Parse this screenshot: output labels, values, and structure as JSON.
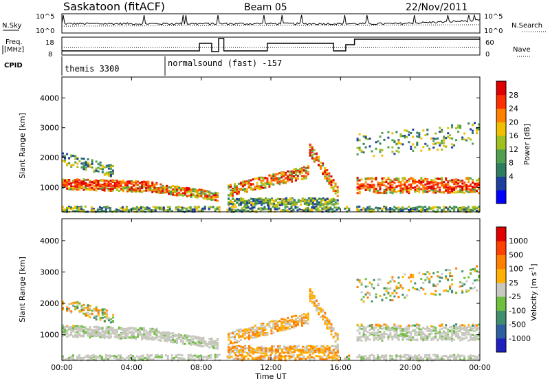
{
  "header": {
    "station": "Saskatoon (fitACF)",
    "beam": "Beam 05",
    "date": "22/Nov/2011"
  },
  "top_panels": {
    "nsky_label": "N.Sky",
    "nsky_ticks": [
      "10^5",
      "10^0"
    ],
    "nsearch_label": "N.Search",
    "nsearch_ticks": [
      "10^5",
      "10^0"
    ],
    "freq_label_1": "Freq.",
    "freq_label_2": "[MHz]",
    "freq_ticks": [
      "18",
      "8"
    ],
    "nave_label": "Nave",
    "nave_ticks": [
      "60",
      "0"
    ],
    "cpid_label": "CPID",
    "cpid_segments": [
      {
        "name": "themis 3300",
        "start_hour": 0
      },
      {
        "name": "normalsound (fast) -157",
        "start_hour": 6
      }
    ]
  },
  "colors": {
    "power": [
      "#0000ff",
      "#1f3f9f",
      "#2e7d60",
      "#4f9f4f",
      "#a0c020",
      "#f0c000",
      "#ff8000",
      "#ff3000",
      "#e00000"
    ],
    "velocity": [
      "#2020c0",
      "#2f5fa0",
      "#3f8f6f",
      "#6fbf3f",
      "#c8c8c0",
      "#ffb000",
      "#ff8000",
      "#ff4000",
      "#e00000"
    ]
  },
  "chart_data": [
    {
      "type": "heatmap",
      "name": "power",
      "ylabel": "Slant Range [km]",
      "yticks": [
        1000,
        2000,
        3000,
        4000
      ],
      "ylim": [
        180,
        4700
      ],
      "xlim": [
        0,
        24
      ],
      "colorbar_label": "Power [dB]",
      "colorbar_ticks": [
        "28",
        "24",
        "20",
        "16",
        "12",
        "8",
        "4"
      ],
      "data_gaps_hours": [
        [
          9.0,
          9.4
        ],
        [
          15.9,
          16.15
        ],
        [
          16.45,
          16.8
        ]
      ]
    },
    {
      "type": "heatmap",
      "name": "velocity",
      "ylabel": "Slant Range [km]",
      "yticks": [
        1000,
        2000,
        3000,
        4000
      ],
      "ylim": [
        180,
        4700
      ],
      "xlim": [
        0,
        24
      ],
      "xlabel": "Time UT",
      "xticks": [
        "00:00",
        "04:00",
        "08:00",
        "12:00",
        "16:00",
        "20:00",
        "00:00"
      ],
      "colorbar_label_main": "Velocity",
      "colorbar_label_unit": "[m s",
      "colorbar_label_sup": "-1",
      "colorbar_label_close": "]",
      "colorbar_ticks": [
        "1000",
        "500",
        "100",
        "25",
        "-25",
        "-100",
        "-500",
        "-1000"
      ]
    }
  ]
}
